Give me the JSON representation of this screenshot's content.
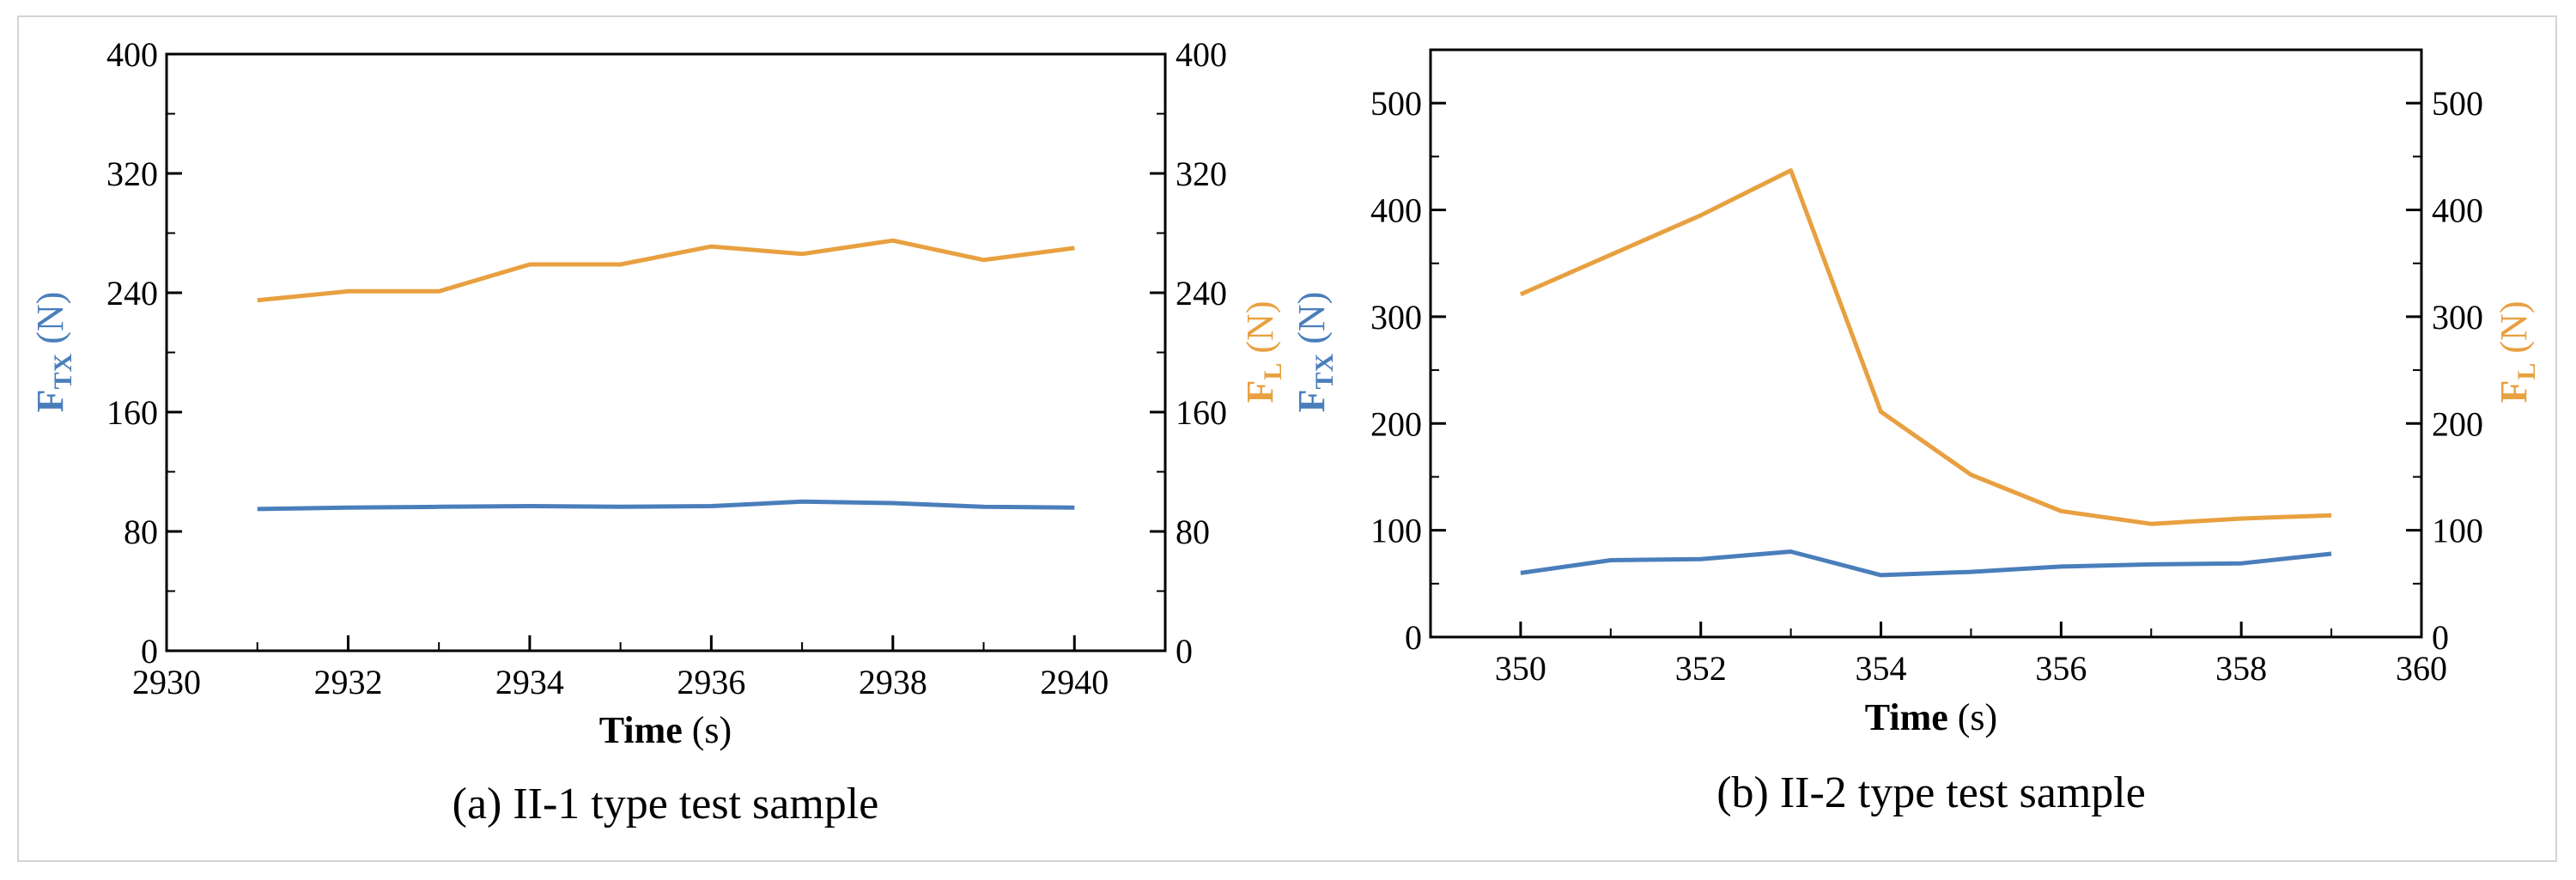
{
  "colors": {
    "ftx": "#4a7ebb",
    "fl": "#e8a040",
    "axis": "#000000",
    "frame": "#d4d4d4"
  },
  "chart_data": [
    {
      "type": "line",
      "caption": "(a) II-1 type test sample",
      "xlabel": "Time",
      "xunit": "(s)",
      "left_ylabel": {
        "main": "F",
        "sub": "TX",
        "unit": "(N)"
      },
      "right_ylabel": {
        "main": "F",
        "sub": "L",
        "unit": "(N)"
      },
      "xlim": [
        2930,
        2941
      ],
      "ylim": [
        0,
        400
      ],
      "x_ticks": [
        "2930",
        "2932",
        "2934",
        "2936",
        "2938",
        "2940"
      ],
      "x_tick_values": [
        2930,
        2932,
        2934,
        2936,
        2938,
        2940
      ],
      "y_ticks": [
        "0",
        "80",
        "160",
        "240",
        "320",
        "400"
      ],
      "y_tick_values": [
        0,
        80,
        160,
        240,
        320,
        400
      ],
      "x": [
        2931,
        2932,
        2933,
        2934,
        2935,
        2936,
        2937,
        2938,
        2939,
        2940
      ],
      "series": [
        {
          "name": "FTX",
          "axis": "left",
          "color_key": "ftx",
          "values": [
            95,
            96,
            96.5,
            97,
            96.5,
            97,
            100,
            99,
            96.5,
            96
          ]
        },
        {
          "name": "FL",
          "axis": "right",
          "color_key": "fl",
          "values": [
            235,
            241,
            241,
            259,
            259,
            271,
            266,
            275,
            262,
            270
          ]
        }
      ]
    },
    {
      "type": "line",
      "caption": "(b) II-2 type test sample",
      "xlabel": "Time",
      "xunit": "(s)",
      "left_ylabel": {
        "main": "F",
        "sub": "TX",
        "unit": "(N)"
      },
      "right_ylabel": {
        "main": "F",
        "sub": "L",
        "unit": "(N)"
      },
      "xlim": [
        349,
        360
      ],
      "ylim": [
        0,
        550
      ],
      "x_ticks": [
        "350",
        "352",
        "354",
        "356",
        "358",
        "360"
      ],
      "x_tick_values": [
        350,
        352,
        354,
        356,
        358,
        360
      ],
      "y_ticks": [
        "0",
        "100",
        "200",
        "300",
        "400",
        "500"
      ],
      "y_tick_values": [
        0,
        100,
        200,
        300,
        400,
        500
      ],
      "x": [
        350,
        351,
        352,
        353,
        354,
        355,
        356,
        357,
        358,
        359
      ],
      "series": [
        {
          "name": "FTX",
          "axis": "left",
          "color_key": "ftx",
          "values": [
            60,
            72,
            73,
            80,
            58,
            61,
            66,
            68,
            69,
            78
          ]
        },
        {
          "name": "FL",
          "axis": "right",
          "color_key": "fl",
          "values": [
            321,
            358,
            395,
            437,
            211,
            152,
            118,
            106,
            111,
            114
          ]
        }
      ]
    }
  ]
}
